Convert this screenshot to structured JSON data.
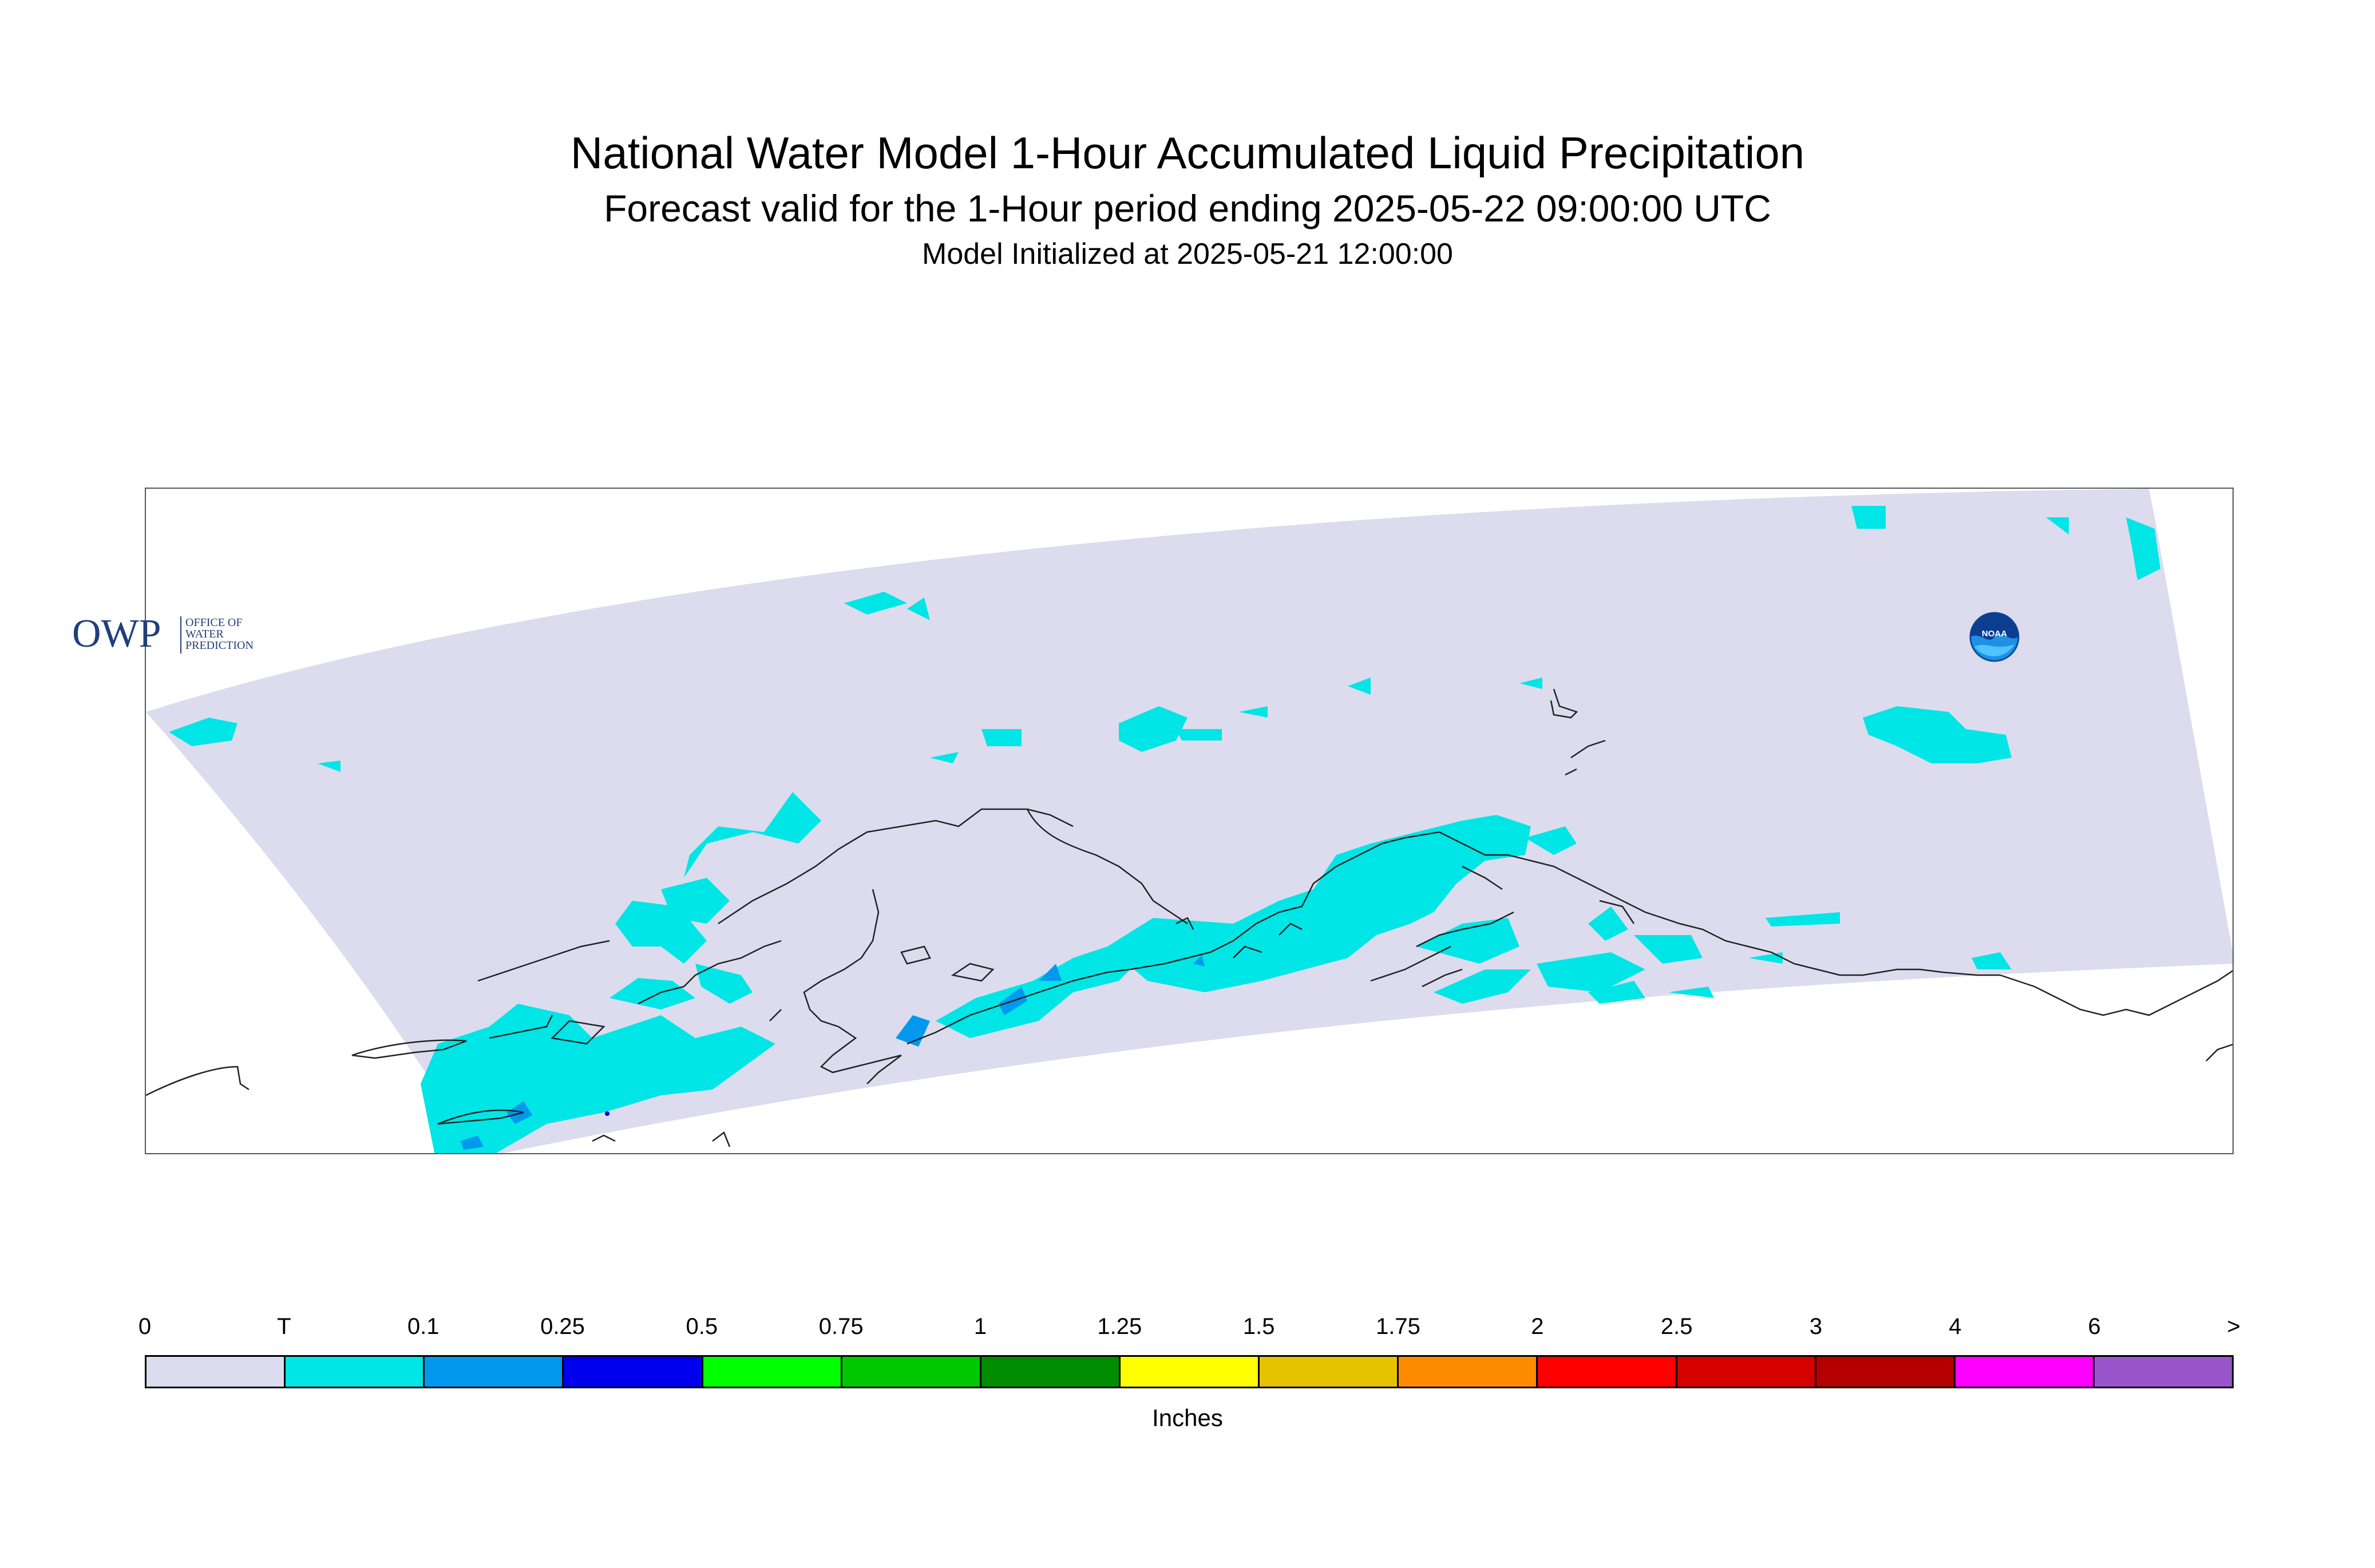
{
  "header": {
    "title": "National Water Model 1-Hour Accumulated Liquid Precipitation",
    "subtitle": "Forecast valid for the 1-Hour period ending 2025-05-22 09:00:00 UTC",
    "init": "Model Initialized at 2025-05-21 12:00:00"
  },
  "logos": {
    "owp_text": "OWP",
    "owp_sub": [
      "OFFICE OF",
      "WATER",
      "PREDICTION"
    ],
    "noaa_text": "NOAA"
  },
  "map": {
    "region_fill": "#dcdcee",
    "coastline_color": "#222222"
  },
  "legend": {
    "labels": [
      "0",
      "T",
      "0.1",
      "0.25",
      "0.5",
      "0.75",
      "1",
      "1.25",
      "1.5",
      "1.75",
      "2",
      "2.5",
      "3",
      "4",
      "6",
      ">"
    ],
    "colors": [
      "#dcdcee",
      "#00e5e5",
      "#0099ee",
      "#0000ee",
      "#00ff00",
      "#00c800",
      "#008c00",
      "#ffff00",
      "#e6c300",
      "#ff8c00",
      "#ff0000",
      "#d50000",
      "#b40000",
      "#ff00ff",
      "#9955cc"
    ],
    "units": "Inches"
  }
}
